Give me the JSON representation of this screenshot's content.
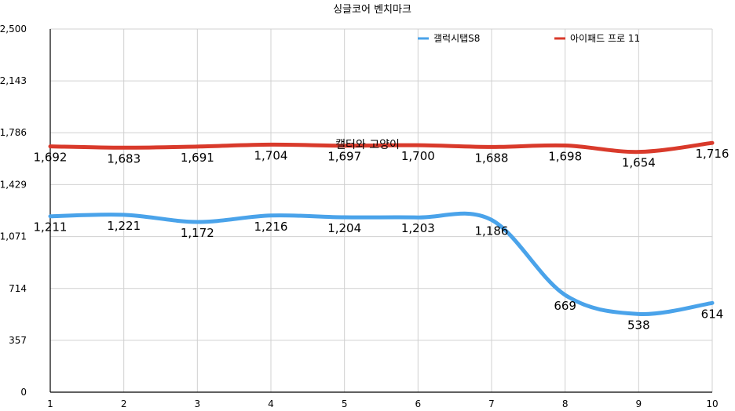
{
  "chart_data": {
    "type": "line",
    "title": "싱글코어 벤치마크",
    "watermark": "캘터와 고양이",
    "x": [
      1,
      2,
      3,
      4,
      5,
      6,
      7,
      8,
      9,
      10
    ],
    "x_tick_labels": [
      "1",
      "2",
      "3",
      "4",
      "5",
      "6",
      "7",
      "8",
      "9",
      "10"
    ],
    "ylim": [
      0,
      2500
    ],
    "y_ticks": [
      0,
      357,
      714,
      1071,
      1429,
      1786,
      2143,
      2500
    ],
    "y_tick_labels": [
      "0",
      "357",
      "714",
      "1,071",
      "1,429",
      "1,786",
      "2,143",
      "2,500"
    ],
    "grid": true,
    "legend_position": "top-right",
    "series": [
      {
        "name": "갤럭시탭S8",
        "color": "#4aa3ea",
        "values": [
          1211,
          1221,
          1172,
          1216,
          1204,
          1203,
          1186,
          669,
          538,
          614
        ],
        "labels": [
          "1,211",
          "1,221",
          "1,172",
          "1,216",
          "1,204",
          "1,203",
          "1,186",
          "669",
          "538",
          "614"
        ]
      },
      {
        "name": "아이패드 프로 11",
        "color": "#d93a2b",
        "values": [
          1692,
          1683,
          1691,
          1704,
          1697,
          1700,
          1688,
          1698,
          1654,
          1716
        ],
        "labels": [
          "1,692",
          "1,683",
          "1,691",
          "1,704",
          "1,697",
          "1,700",
          "1,688",
          "1,698",
          "1,654",
          "1,716"
        ]
      }
    ]
  }
}
